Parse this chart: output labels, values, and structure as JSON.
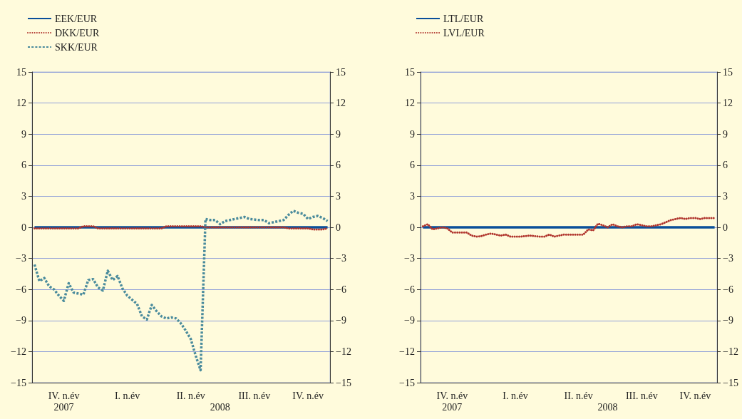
{
  "chart_data": [
    {
      "type": "line",
      "legend": "top left",
      "grid": "y",
      "categories": [
        null,
        null,
        null,
        null,
        null,
        null,
        "IV. n.év\n2007",
        null,
        null,
        null,
        null,
        null,
        null,
        null,
        null,
        null,
        null,
        null,
        null,
        "I. n.év",
        null,
        null,
        null,
        null,
        null,
        null,
        null,
        null,
        null,
        null,
        null,
        null,
        "II. n.év",
        null,
        null,
        null,
        null,
        null,
        "\n2008",
        null,
        null,
        null,
        null,
        null,
        null,
        "III. n.év",
        null,
        null,
        null,
        null,
        null,
        null,
        null,
        null,
        null,
        null,
        "IV. n.év",
        null,
        null,
        null,
        null
      ],
      "ylim": [
        -15,
        15
      ],
      "yticks": [
        {
          "value": -15,
          "label": "−15"
        },
        {
          "value": -12,
          "label": "−12"
        },
        {
          "value": -9,
          "label": "−9"
        },
        {
          "value": -6,
          "label": "−6"
        },
        {
          "value": -3,
          "label": "−3"
        },
        0,
        3,
        6,
        9,
        12,
        15
      ],
      "y2lim": [
        -15,
        15
      ],
      "y2ticks": [
        {
          "value": -15,
          "label": "−15"
        },
        {
          "value": -12,
          "label": "−12"
        },
        {
          "value": -9,
          "label": "−9"
        },
        {
          "value": -6,
          "label": "−6"
        },
        {
          "value": -3,
          "label": "−3"
        },
        0,
        3,
        6,
        9,
        12,
        15
      ],
      "series": [
        {
          "name": "EEK/EUR",
          "color": "#0a4f9a",
          "line_style": "solid",
          "values": [
            0,
            0,
            0,
            0,
            0,
            0,
            0,
            0,
            0,
            0,
            0,
            0,
            0,
            0,
            0,
            0,
            0,
            0,
            0,
            0,
            0,
            0,
            0,
            0,
            0,
            0,
            0,
            0,
            0,
            0,
            0,
            0,
            0,
            0,
            0,
            0,
            0,
            0,
            0,
            0,
            0,
            0,
            0,
            0,
            0,
            0,
            0,
            0,
            0,
            0,
            0,
            0,
            0,
            0,
            0,
            0,
            0,
            0,
            0,
            0,
            0
          ]
        },
        {
          "name": "DKK/EUR",
          "color": "#b0342c",
          "line_style": "dotted",
          "values": [
            -0.1,
            -0.1,
            -0.1,
            -0.1,
            -0.1,
            -0.1,
            -0.1,
            -0.1,
            -0.1,
            -0.1,
            0.1,
            0.1,
            0.1,
            -0.1,
            -0.1,
            -0.1,
            -0.1,
            -0.1,
            -0.1,
            -0.1,
            -0.1,
            -0.1,
            -0.1,
            -0.1,
            -0.1,
            -0.1,
            -0.1,
            0.1,
            0.1,
            0.1,
            0.1,
            0.1,
            0.1,
            0.1,
            0.1,
            0,
            0,
            0,
            0,
            0,
            0,
            0,
            0,
            0,
            0,
            0,
            0,
            0,
            0,
            0,
            0,
            0,
            -0.1,
            -0.1,
            -0.1,
            -0.1,
            -0.1,
            -0.2,
            -0.2,
            -0.2,
            -0.1
          ]
        },
        {
          "name": "SKK/EUR",
          "color": "#4a8b9c",
          "line_style": "dashed",
          "values": [
            -3.6,
            -5.2,
            -4.9,
            -5.7,
            -6.0,
            -6.6,
            -7.1,
            -5.4,
            -6.3,
            -6.4,
            -6.5,
            -5.1,
            -5.0,
            -5.8,
            -6.1,
            -4.2,
            -5.1,
            -4.7,
            -5.9,
            -6.6,
            -7.0,
            -7.4,
            -8.6,
            -8.9,
            -7.5,
            -8.1,
            -8.6,
            -8.8,
            -8.7,
            -8.8,
            -9.3,
            -10.0,
            -10.8,
            -12.4,
            -13.8,
            0.8,
            0.7,
            0.7,
            0.3,
            0.6,
            0.7,
            0.8,
            0.9,
            1.0,
            0.8,
            0.75,
            0.7,
            0.7,
            0.4,
            0.5,
            0.6,
            0.7,
            1.2,
            1.6,
            1.4,
            1.3,
            0.8,
            1.0,
            1.1,
            0.9,
            0.6
          ]
        }
      ]
    },
    {
      "type": "line",
      "legend": "top left",
      "grid": "y",
      "categories": [
        null,
        null,
        null,
        null,
        null,
        null,
        "IV. n.év\n2007",
        null,
        null,
        null,
        null,
        null,
        null,
        null,
        null,
        null,
        null,
        null,
        null,
        "I. n.év",
        null,
        null,
        null,
        null,
        null,
        null,
        null,
        null,
        null,
        null,
        null,
        null,
        "II. n.év",
        null,
        null,
        null,
        null,
        null,
        "\n2008",
        null,
        null,
        null,
        null,
        null,
        null,
        "III. n.év",
        null,
        null,
        null,
        null,
        null,
        null,
        null,
        null,
        null,
        null,
        "IV. n.év",
        null,
        null,
        null,
        null
      ],
      "ylim": [
        -15,
        15
      ],
      "yticks": [
        {
          "value": -15,
          "label": "−15"
        },
        {
          "value": -12,
          "label": "−12"
        },
        {
          "value": -9,
          "label": "−9"
        },
        {
          "value": -6,
          "label": "−6"
        },
        {
          "value": -3,
          "label": "−3"
        },
        0,
        3,
        6,
        9,
        12,
        15
      ],
      "y2lim": [
        -15,
        15
      ],
      "y2ticks": [
        {
          "value": -15,
          "label": "−15"
        },
        {
          "value": -12,
          "label": "−12"
        },
        {
          "value": -9,
          "label": "−9"
        },
        {
          "value": -6,
          "label": "−6"
        },
        {
          "value": -3,
          "label": "−3"
        },
        0,
        3,
        6,
        9,
        12,
        15
      ],
      "series": [
        {
          "name": "LTL/EUR",
          "color": "#0a4f9a",
          "line_style": "solid",
          "values": [
            0,
            0,
            0,
            0,
            0,
            0,
            0,
            0,
            0,
            0,
            0,
            0,
            0,
            0,
            0,
            0,
            0,
            0,
            0,
            0,
            0,
            0,
            0,
            0,
            0,
            0,
            0,
            0,
            0,
            0,
            0,
            0,
            0,
            0,
            0,
            0,
            0,
            0,
            0,
            0,
            0,
            0,
            0,
            0,
            0,
            0,
            0,
            0,
            0,
            0,
            0,
            0,
            0,
            0,
            0,
            0,
            0,
            0,
            0,
            0,
            0
          ]
        },
        {
          "name": "LVL/EUR",
          "color": "#b0342c",
          "line_style": "dotted",
          "values": [
            0.1,
            0.3,
            -0.2,
            -0.1,
            0,
            -0.1,
            -0.5,
            -0.5,
            -0.5,
            -0.5,
            -0.8,
            -0.9,
            -0.85,
            -0.7,
            -0.6,
            -0.7,
            -0.8,
            -0.7,
            -0.9,
            -0.9,
            -0.9,
            -0.85,
            -0.8,
            -0.85,
            -0.9,
            -0.9,
            -0.7,
            -0.9,
            -0.8,
            -0.7,
            -0.7,
            -0.7,
            -0.7,
            -0.7,
            -0.2,
            -0.3,
            0.35,
            0.2,
            0,
            0.3,
            0.1,
            0,
            0.1,
            0.1,
            0.3,
            0.2,
            0.1,
            0.1,
            0.2,
            0.3,
            0.5,
            0.7,
            0.8,
            0.9,
            0.8,
            0.9,
            0.9,
            0.8,
            0.9,
            0.9,
            0.9
          ]
        }
      ]
    }
  ]
}
